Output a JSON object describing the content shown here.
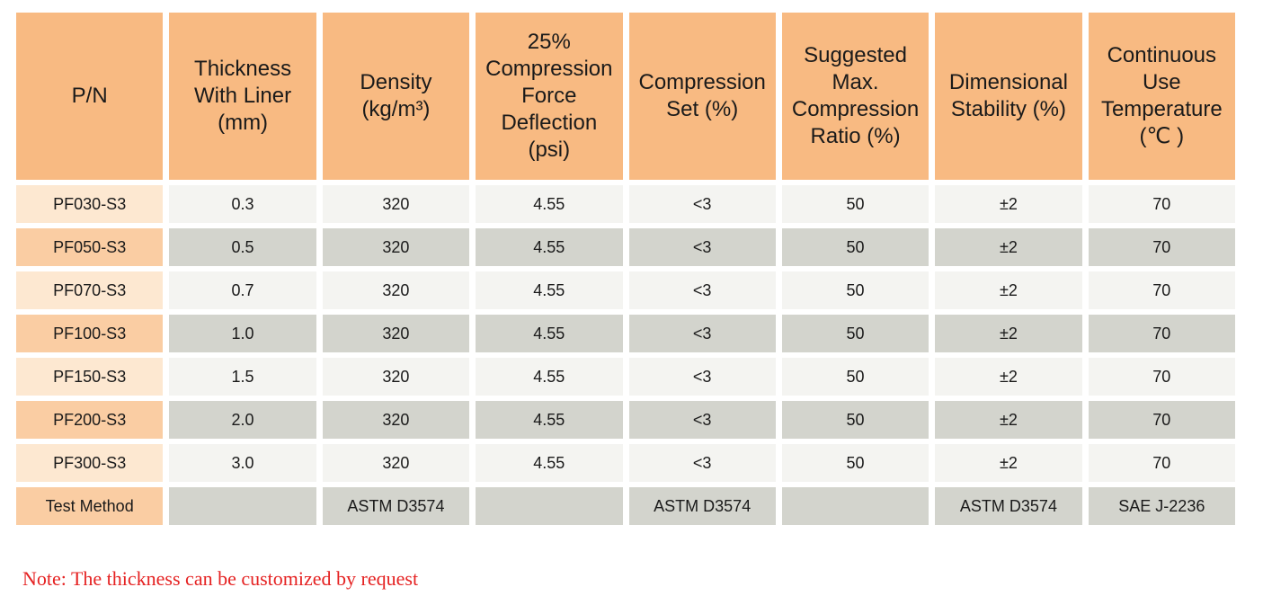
{
  "colors": {
    "header_bg": "#F8BA82",
    "pn_light": "#FDE8D1",
    "pn_dark": "#FACDA3",
    "row_light": "#F4F4F1",
    "row_dark": "#D3D4CD",
    "text": "#1A1A1A",
    "note_red": "#E52222",
    "page_bg": "#FFFFFF"
  },
  "table": {
    "headers": [
      {
        "lines": [
          "P/N"
        ]
      },
      {
        "lines": [
          "Thickness",
          "With Liner",
          "(mm)"
        ]
      },
      {
        "lines": [
          "Density",
          "(kg/m³)"
        ]
      },
      {
        "lines": [
          "25%",
          "Compression",
          "Force",
          "Deflection",
          "(psi)"
        ]
      },
      {
        "lines": [
          "Compression",
          "Set (%)"
        ]
      },
      {
        "lines": [
          "Suggested",
          "Max.",
          "Compression",
          "Ratio (%)"
        ]
      },
      {
        "lines": [
          "Dimensional",
          "Stability (%)"
        ]
      },
      {
        "lines": [
          "Continuous",
          "Use",
          "Temperature",
          "(℃ )"
        ]
      }
    ],
    "rows": [
      {
        "pn": "PF030-S3",
        "values": [
          "0.3",
          "320",
          "4.55",
          "<3",
          "50",
          "±2",
          "70"
        ]
      },
      {
        "pn": "PF050-S3",
        "values": [
          "0.5",
          "320",
          "4.55",
          "<3",
          "50",
          "±2",
          "70"
        ]
      },
      {
        "pn": "PF070-S3",
        "values": [
          "0.7",
          "320",
          "4.55",
          "<3",
          "50",
          "±2",
          "70"
        ]
      },
      {
        "pn": "PF100-S3",
        "values": [
          "1.0",
          "320",
          "4.55",
          "<3",
          "50",
          "±2",
          "70"
        ]
      },
      {
        "pn": "PF150-S3",
        "values": [
          "1.5",
          "320",
          "4.55",
          "<3",
          "50",
          "±2",
          "70"
        ]
      },
      {
        "pn": "PF200-S3",
        "values": [
          "2.0",
          "320",
          "4.55",
          "<3",
          "50",
          "±2",
          "70"
        ]
      },
      {
        "pn": "PF300-S3",
        "values": [
          "3.0",
          "320",
          "4.55",
          "<3",
          "50",
          "±2",
          "70"
        ]
      },
      {
        "pn": "Test Method",
        "values": [
          "",
          "ASTM D3574",
          "",
          "ASTM D3574",
          "",
          "ASTM D3574",
          "SAE J-2236"
        ]
      }
    ]
  },
  "note": {
    "text": "Note: The thickness can be customized by request"
  }
}
